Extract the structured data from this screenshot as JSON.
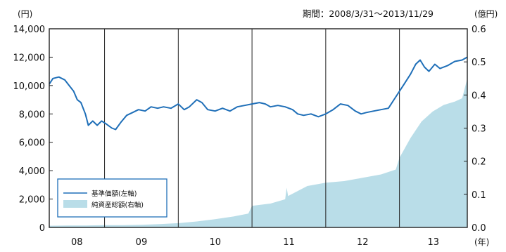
{
  "chart_data": {
    "type": "line",
    "period_label": "期間：2008/3/31～2013/11/29",
    "left_axis": {
      "unit": "(円)",
      "ylim": [
        0,
        14000
      ],
      "ticks": [
        "0",
        "2,000",
        "4,000",
        "6,000",
        "8,000",
        "10,000",
        "12,000",
        "14,000"
      ]
    },
    "right_axis": {
      "unit": "(億円)",
      "ylim": [
        0.0,
        0.6
      ],
      "ticks": [
        "0.0",
        "0.1",
        "0.2",
        "0.3",
        "0.4",
        "0.5",
        "0.6"
      ]
    },
    "x_axis": {
      "unit": "(年)",
      "categories": [
        "08",
        "09",
        "10",
        "11",
        "12",
        "13"
      ],
      "range": [
        2008.25,
        2013.92
      ]
    },
    "legend": [
      "基準価額(左軸)",
      "純資産総額(右軸)"
    ],
    "series": [
      {
        "name": "基準価額(左軸)",
        "axis": "left",
        "style": "line",
        "color": "#1f6fb8",
        "points": [
          [
            2008.25,
            10100
          ],
          [
            2008.3,
            10500
          ],
          [
            2008.38,
            10600
          ],
          [
            2008.46,
            10400
          ],
          [
            2008.52,
            10000
          ],
          [
            2008.58,
            9600
          ],
          [
            2008.63,
            9000
          ],
          [
            2008.68,
            8800
          ],
          [
            2008.74,
            8000
          ],
          [
            2008.78,
            7200
          ],
          [
            2008.84,
            7500
          ],
          [
            2008.9,
            7200
          ],
          [
            2008.96,
            7500
          ],
          [
            2009.02,
            7300
          ],
          [
            2009.1,
            7000
          ],
          [
            2009.15,
            6900
          ],
          [
            2009.22,
            7400
          ],
          [
            2009.3,
            7900
          ],
          [
            2009.38,
            8100
          ],
          [
            2009.46,
            8300
          ],
          [
            2009.55,
            8200
          ],
          [
            2009.63,
            8500
          ],
          [
            2009.72,
            8400
          ],
          [
            2009.8,
            8500
          ],
          [
            2009.9,
            8400
          ],
          [
            2010.0,
            8700
          ],
          [
            2010.08,
            8300
          ],
          [
            2010.15,
            8500
          ],
          [
            2010.25,
            9000
          ],
          [
            2010.32,
            8800
          ],
          [
            2010.4,
            8300
          ],
          [
            2010.5,
            8200
          ],
          [
            2010.6,
            8400
          ],
          [
            2010.7,
            8200
          ],
          [
            2010.8,
            8500
          ],
          [
            2010.9,
            8600
          ],
          [
            2011.0,
            8700
          ],
          [
            2011.1,
            8800
          ],
          [
            2011.18,
            8700
          ],
          [
            2011.25,
            8500
          ],
          [
            2011.35,
            8600
          ],
          [
            2011.45,
            8500
          ],
          [
            2011.55,
            8300
          ],
          [
            2011.62,
            8000
          ],
          [
            2011.7,
            7900
          ],
          [
            2011.8,
            8000
          ],
          [
            2011.9,
            7800
          ],
          [
            2012.0,
            8000
          ],
          [
            2012.1,
            8300
          ],
          [
            2012.2,
            8700
          ],
          [
            2012.3,
            8600
          ],
          [
            2012.4,
            8200
          ],
          [
            2012.48,
            8000
          ],
          [
            2012.55,
            8100
          ],
          [
            2012.65,
            8200
          ],
          [
            2012.75,
            8300
          ],
          [
            2012.85,
            8400
          ],
          [
            2012.95,
            9200
          ],
          [
            2013.05,
            10000
          ],
          [
            2013.15,
            10800
          ],
          [
            2013.22,
            11500
          ],
          [
            2013.28,
            11800
          ],
          [
            2013.34,
            11300
          ],
          [
            2013.4,
            11000
          ],
          [
            2013.48,
            11500
          ],
          [
            2013.55,
            11200
          ],
          [
            2013.65,
            11400
          ],
          [
            2013.75,
            11700
          ],
          [
            2013.85,
            11800
          ],
          [
            2013.92,
            12000
          ]
        ]
      },
      {
        "name": "純資産総額(右軸)",
        "axis": "right",
        "style": "area",
        "color": "#b9dde8",
        "points": [
          [
            2008.25,
            0.005
          ],
          [
            2008.5,
            0.006
          ],
          [
            2008.75,
            0.006
          ],
          [
            2009.0,
            0.007
          ],
          [
            2009.25,
            0.007
          ],
          [
            2009.5,
            0.008
          ],
          [
            2009.75,
            0.01
          ],
          [
            2010.0,
            0.013
          ],
          [
            2010.25,
            0.018
          ],
          [
            2010.5,
            0.025
          ],
          [
            2010.75,
            0.033
          ],
          [
            2010.95,
            0.042
          ],
          [
            2011.0,
            0.065
          ],
          [
            2011.25,
            0.072
          ],
          [
            2011.45,
            0.085
          ],
          [
            2011.47,
            0.12
          ],
          [
            2011.49,
            0.095
          ],
          [
            2011.75,
            0.125
          ],
          [
            2012.0,
            0.135
          ],
          [
            2012.25,
            0.14
          ],
          [
            2012.5,
            0.15
          ],
          [
            2012.75,
            0.16
          ],
          [
            2012.95,
            0.175
          ],
          [
            2013.0,
            0.21
          ],
          [
            2013.15,
            0.27
          ],
          [
            2013.3,
            0.32
          ],
          [
            2013.45,
            0.35
          ],
          [
            2013.6,
            0.37
          ],
          [
            2013.75,
            0.38
          ],
          [
            2013.85,
            0.39
          ],
          [
            2013.92,
            0.45
          ]
        ]
      }
    ],
    "grid": false,
    "legend_position": "bottom-left"
  }
}
